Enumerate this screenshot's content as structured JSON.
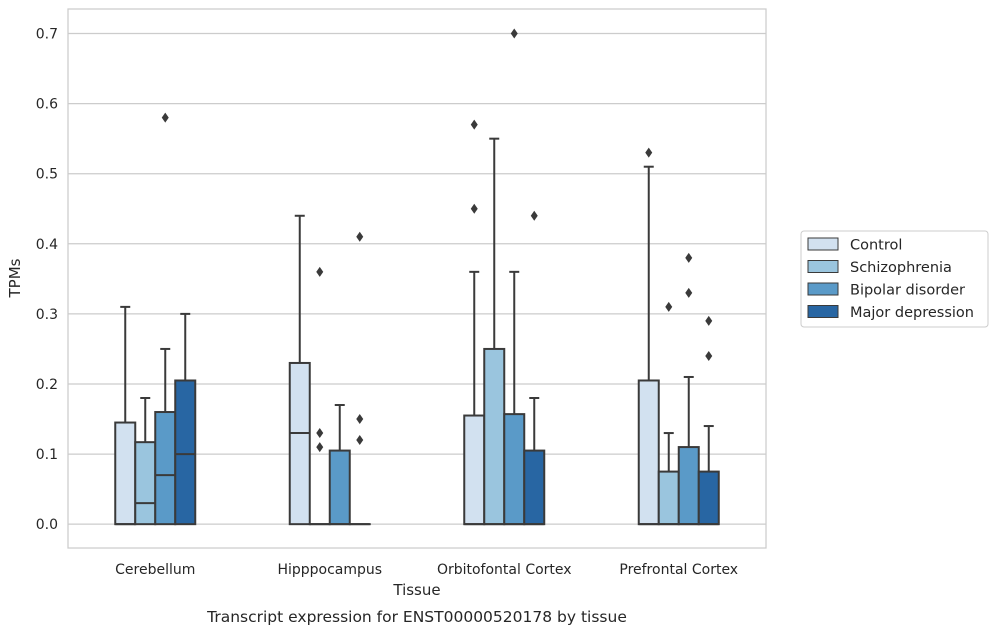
{
  "caption": "Transcript expression for ENST00000520178 by tissue",
  "chart_data": {
    "type": "box",
    "xlabel": "Tissue",
    "ylabel": "TPMs",
    "ylim": [
      -0.034,
      0.735
    ],
    "yticks": [
      0.0,
      0.1,
      0.2,
      0.3,
      0.4,
      0.5,
      0.6,
      0.7
    ],
    "ytick_labels": [
      "0.0",
      "0.1",
      "0.2",
      "0.3",
      "0.4",
      "0.5",
      "0.6",
      "0.7"
    ],
    "grid": "horizontal",
    "legend_position": "right",
    "categories": [
      "Cerebellum",
      "Hipppocampus",
      "Orbitofontal Cortex",
      "Prefrontal Cortex"
    ],
    "series": [
      {
        "name": "Control",
        "color": "#d2e1f0",
        "boxes": [
          {
            "q1": 0.0,
            "median": 0.0,
            "q3": 0.145,
            "whisker_low": 0.0,
            "whisker_high": 0.31,
            "outliers": []
          },
          {
            "q1": 0.0,
            "median": 0.13,
            "q3": 0.23,
            "whisker_low": 0.0,
            "whisker_high": 0.44,
            "outliers": []
          },
          {
            "q1": 0.0,
            "median": 0.0,
            "q3": 0.155,
            "whisker_low": 0.0,
            "whisker_high": 0.36,
            "outliers": [
              0.45,
              0.57
            ]
          },
          {
            "q1": 0.0,
            "median": 0.0,
            "q3": 0.205,
            "whisker_low": 0.0,
            "whisker_high": 0.51,
            "outliers": [
              0.53
            ]
          }
        ]
      },
      {
        "name": "Schizophrenia",
        "color": "#9ac5de",
        "boxes": [
          {
            "q1": 0.0,
            "median": 0.03,
            "q3": 0.117,
            "whisker_low": 0.0,
            "whisker_high": 0.18,
            "outliers": []
          },
          {
            "q1": 0.0,
            "median": 0.0,
            "q3": 0.0,
            "whisker_low": 0.0,
            "whisker_high": 0.0,
            "outliers": [
              0.11,
              0.13,
              0.36
            ]
          },
          {
            "q1": 0.0,
            "median": 0.0,
            "q3": 0.25,
            "whisker_low": 0.0,
            "whisker_high": 0.55,
            "outliers": []
          },
          {
            "q1": 0.0,
            "median": 0.0,
            "q3": 0.075,
            "whisker_low": 0.0,
            "whisker_high": 0.13,
            "outliers": [
              0.31
            ]
          }
        ]
      },
      {
        "name": "Bipolar disorder",
        "color": "#5a9ac8",
        "boxes": [
          {
            "q1": 0.0,
            "median": 0.07,
            "q3": 0.16,
            "whisker_low": 0.0,
            "whisker_high": 0.25,
            "outliers": [
              0.58
            ]
          },
          {
            "q1": 0.0,
            "median": 0.0,
            "q3": 0.105,
            "whisker_low": 0.0,
            "whisker_high": 0.17,
            "outliers": []
          },
          {
            "q1": 0.0,
            "median": 0.0,
            "q3": 0.157,
            "whisker_low": 0.0,
            "whisker_high": 0.36,
            "outliers": [
              0.7
            ]
          },
          {
            "q1": 0.0,
            "median": 0.0,
            "q3": 0.11,
            "whisker_low": 0.0,
            "whisker_high": 0.21,
            "outliers": [
              0.33,
              0.38
            ]
          }
        ]
      },
      {
        "name": "Major depression",
        "color": "#2866a3",
        "boxes": [
          {
            "q1": 0.0,
            "median": 0.1,
            "q3": 0.205,
            "whisker_low": 0.0,
            "whisker_high": 0.3,
            "outliers": []
          },
          {
            "q1": 0.0,
            "median": 0.0,
            "q3": 0.0,
            "whisker_low": 0.0,
            "whisker_high": 0.0,
            "outliers": [
              0.12,
              0.15,
              0.41
            ]
          },
          {
            "q1": 0.0,
            "median": 0.0,
            "q3": 0.105,
            "whisker_low": 0.0,
            "whisker_high": 0.18,
            "outliers": [
              0.44
            ]
          },
          {
            "q1": 0.0,
            "median": 0.0,
            "q3": 0.075,
            "whisker_low": 0.0,
            "whisker_high": 0.14,
            "outliers": [
              0.24,
              0.29
            ]
          }
        ]
      }
    ]
  }
}
